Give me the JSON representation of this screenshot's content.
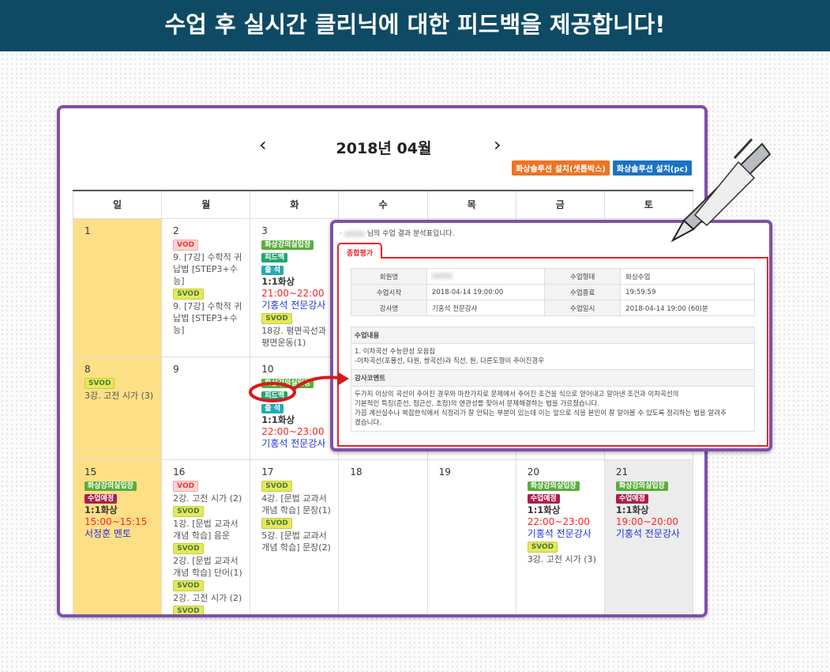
{
  "banner": {
    "title": "수업 후 실시간 클리닉에 대한 피드백을 제공합니다!",
    "bg": "#0e4a64"
  },
  "calendar": {
    "month_title": "2018년 04월",
    "prev_icon": "chevron-left-icon",
    "next_icon": "chevron-right-icon",
    "install_buttons": [
      {
        "label": "화상솔루션 설치(셋톱박스)",
        "color": "#f07322"
      },
      {
        "label": "화상솔루션 설치(pc)",
        "color": "#1a73c3"
      }
    ],
    "weekdays": [
      "일",
      "월",
      "화",
      "수",
      "목",
      "금",
      "토"
    ],
    "weeks": [
      [
        {
          "date": "1",
          "items": []
        },
        {
          "date": "2",
          "items": [
            {
              "tag": "VOD",
              "kind": "vod"
            },
            {
              "text": "9. [7강] 수학적 귀납법 [STEP3+수능]"
            },
            {
              "tag": "SVOD",
              "kind": "svod"
            },
            {
              "text": "9. [7강] 수학적 귀납법 [STEP3+수능]"
            }
          ]
        },
        {
          "date": "3",
          "items": [
            {
              "tag": "화상강의실입장",
              "kind": "enter"
            },
            {
              "tag": "피드백",
              "kind": "fb"
            },
            {
              "tag": "출 석",
              "kind": "att"
            },
            {
              "kind_text": "1:1화상"
            },
            {
              "time": "21:00~22:00"
            },
            {
              "teacher": "기홍석 전문강사"
            },
            {
              "tag": "SVOD",
              "kind": "svod"
            },
            {
              "text": "18강. 평면곡선과 평면운동(1)"
            }
          ]
        },
        {
          "date": "",
          "items": []
        },
        {
          "date": "",
          "items": []
        },
        {
          "date": "",
          "items": []
        },
        {
          "date": "",
          "items": []
        }
      ],
      [
        {
          "date": "8",
          "items": [
            {
              "tag": "SVOD",
              "kind": "svod"
            },
            {
              "text": "3강. 고전 시가 (3)"
            }
          ]
        },
        {
          "date": "9",
          "items": []
        },
        {
          "date": "10",
          "items": [
            {
              "tag": "화상강의실입장",
              "kind": "enter"
            },
            {
              "tag": "피드백",
              "kind": "fb"
            },
            {
              "tag": "출 석",
              "kind": "att"
            },
            {
              "kind_text": "1:1화상"
            },
            {
              "time": "22:00~23:00"
            },
            {
              "teacher": "기홍석 전문강사"
            }
          ]
        },
        {
          "date": "",
          "items": []
        },
        {
          "date": "",
          "items": []
        },
        {
          "date": "",
          "items": []
        },
        {
          "date": "",
          "items": []
        }
      ],
      [
        {
          "date": "15",
          "items": [
            {
              "tag": "화상강의실입장",
              "kind": "enter"
            },
            {
              "tag": "수업예정",
              "kind": "plan"
            },
            {
              "kind_text": "1:1화상"
            },
            {
              "time": "15:00~15:15"
            },
            {
              "teacher": "서정훈 멘토"
            }
          ]
        },
        {
          "date": "16",
          "items": [
            {
              "tag": "VOD",
              "kind": "vod"
            },
            {
              "text": "2강. 고전 시가 (2)"
            },
            {
              "tag": "SVOD",
              "kind": "svod"
            },
            {
              "text": "1강. [문법 교과서 개념 학습] 음운"
            },
            {
              "tag": "SVOD",
              "kind": "svod"
            },
            {
              "text": "2강. [문법 교과서 개념 학습] 단어(1)"
            },
            {
              "tag": "SVOD",
              "kind": "svod"
            },
            {
              "text": "2강. 고전 시가 (2)"
            },
            {
              "tag": "SVOD",
              "kind": "svod"
            },
            {
              "text": "3강. [문법 교과서 개념 학습]"
            }
          ]
        },
        {
          "date": "17",
          "items": [
            {
              "tag": "SVOD",
              "kind": "svod"
            },
            {
              "text": "4강. [문법 교과서 개념 학습] 문장(1)"
            },
            {
              "tag": "SVOD",
              "kind": "svod"
            },
            {
              "text": "5강. [문법 교과서 개념 학습] 문장(2)"
            }
          ]
        },
        {
          "date": "18",
          "items": []
        },
        {
          "date": "19",
          "items": []
        },
        {
          "date": "20",
          "items": [
            {
              "tag": "화상강의실입장",
              "kind": "enter"
            },
            {
              "tag": "수업예정",
              "kind": "plan"
            },
            {
              "kind_text": "1:1화상"
            },
            {
              "time": "22:00~23:00"
            },
            {
              "teacher": "기홍석 전문강사"
            },
            {
              "tag": "SVOD",
              "kind": "svod"
            },
            {
              "text": "3강. 고전 시가 (3)"
            }
          ]
        },
        {
          "date": "21",
          "items": [
            {
              "tag": "화상강의실입장",
              "kind": "enter"
            },
            {
              "tag": "수업예정",
              "kind": "plan"
            },
            {
              "kind_text": "1:1화상"
            },
            {
              "time": "19:00~20:00"
            },
            {
              "teacher": "기홍석 전문강사"
            }
          ]
        }
      ]
    ]
  },
  "popup": {
    "intro": "님의 수업 결과 분석표입니다.",
    "tab": "종합평가",
    "info": [
      {
        "l1": "회원명",
        "v1": "",
        "l2": "수업형태",
        "v2": "화상수업"
      },
      {
        "l1": "수업시작",
        "v1": "2018-04-14 19:00:00",
        "l2": "수업종료",
        "v2": "19:59:59"
      },
      {
        "l1": "강사명",
        "v1": "기홍석 전문강사",
        "l2": "수업일시",
        "v2": "2018-04-14 19:00 (60)분"
      }
    ],
    "content_title": "수업내용",
    "content_lines": [
      "1. 이차곡선 수능완성 모음집",
      "-이차곡선(포물선, 타원, 쌍곡선)과 직선, 원, 다른도형이 주어진경우"
    ],
    "comment_title": "강사코멘트",
    "comment_lines": [
      "두가지 이상의 곡선이 주어진 경우와 마찬가지로 문제에서 주어진 조건을 식으로 얻어내고 알아낸 조건과 이차곡선의",
      "기본적인 특징(준선, 점근선, 초점)의 연관성를 찾아서 문제해결하는 법을 가르쳤습니다.",
      "가끔 계산실수나 복잡한식에서 식정리가 잘 안되는 부분이 있는데 이는 앞으로 식을 본인이 잘 알아볼 수 있도록 정리하는 법을 알려주",
      "겠습니다."
    ]
  },
  "colors": {
    "frame": "#7d51a8",
    "highlight": "#d41b1b",
    "sunday": "#fddf86",
    "saturday": "#ececec"
  }
}
